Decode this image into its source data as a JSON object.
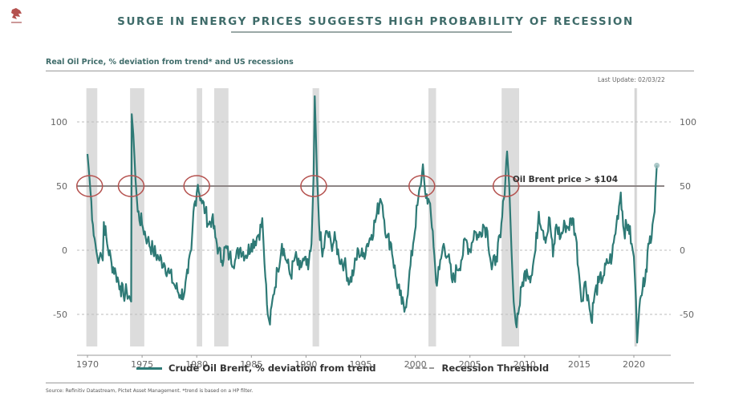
{
  "header": {
    "logo": "lion-crest-logo",
    "title": "SURGE IN ENERGY PRICES SUGGESTS HIGH PROBABILITY OF RECESSION",
    "subtitle": "Real Oil Price, % deviation from trend* and US recessions",
    "last_update": "Last Update: 02/03/22"
  },
  "footer": {
    "source": "Source: Refinitiv Datastream, Pictet Asset Management. *trend is based on a HP filter."
  },
  "colors": {
    "series": "#2e7a76",
    "threshold": "#8d8585",
    "circle": "#b5524f",
    "recession": "#dcdcdc",
    "title": "#3e6b69"
  },
  "chart_data": {
    "type": "line",
    "title": "Real Oil Price, % deviation from trend* and US recessions",
    "xlabel": "",
    "ylabel": "",
    "xlim": [
      1969.3,
      2023.4
    ],
    "ylim": [
      -75,
      125
    ],
    "x_ticks": [
      1970,
      1975,
      1980,
      1985,
      1990,
      1995,
      2000,
      2005,
      2010,
      2015,
      2020
    ],
    "y_ticks": [
      -50,
      0,
      50,
      100
    ],
    "y_tick_labels_right": [
      "-50",
      "0",
      "50",
      "100"
    ],
    "grid": "horizontal dashed",
    "legend": {
      "position": "bottom",
      "entries": [
        {
          "label": "Crude Oil Brent, % deviation from trend",
          "style": "solid"
        },
        {
          "label": "Recession Threshold",
          "style": "dashed"
        }
      ]
    },
    "threshold": {
      "value": 50,
      "label": "Oil Brent price > $104"
    },
    "recessions": [
      [
        1969.9,
        1970.9
      ],
      [
        1973.9,
        1975.2
      ],
      [
        1980.0,
        1980.5
      ],
      [
        1981.6,
        1982.9
      ],
      [
        1990.6,
        1991.2
      ],
      [
        2001.2,
        2001.9
      ],
      [
        2007.9,
        2009.5
      ],
      [
        2020.1,
        2020.3
      ]
    ],
    "circled_crossings": [
      1970.2,
      1974.0,
      1980.0,
      1990.7,
      2000.6,
      2008.3
    ],
    "last_point": {
      "x": 2022.1,
      "y": 66
    },
    "series": [
      {
        "name": "Crude Oil Brent, % deviation from trend",
        "points": [
          [
            1970.0,
            75
          ],
          [
            1970.2,
            55
          ],
          [
            1970.5,
            20
          ],
          [
            1970.8,
            0
          ],
          [
            1971.0,
            -10
          ],
          [
            1971.2,
            -2
          ],
          [
            1971.4,
            -8
          ],
          [
            1971.5,
            22
          ],
          [
            1971.8,
            5
          ],
          [
            1972.2,
            -10
          ],
          [
            1972.6,
            -18
          ],
          [
            1973.0,
            -28
          ],
          [
            1973.3,
            -35
          ],
          [
            1973.6,
            -32
          ],
          [
            1973.9,
            -38
          ],
          [
            1974.0,
            -40
          ],
          [
            1974.05,
            106
          ],
          [
            1974.2,
            90
          ],
          [
            1974.4,
            55
          ],
          [
            1974.6,
            30
          ],
          [
            1975.0,
            20
          ],
          [
            1975.5,
            8
          ],
          [
            1976.0,
            0
          ],
          [
            1976.5,
            -6
          ],
          [
            1977.0,
            -10
          ],
          [
            1977.5,
            -18
          ],
          [
            1978.0,
            -28
          ],
          [
            1978.5,
            -35
          ],
          [
            1978.9,
            -32
          ],
          [
            1979.2,
            -18
          ],
          [
            1979.5,
            0
          ],
          [
            1979.7,
            30
          ],
          [
            1980.0,
            45
          ],
          [
            1980.1,
            51
          ],
          [
            1980.4,
            40
          ],
          [
            1980.8,
            30
          ],
          [
            1981.1,
            20
          ],
          [
            1981.4,
            25
          ],
          [
            1981.7,
            10
          ],
          [
            1982.0,
            0
          ],
          [
            1982.3,
            -8
          ],
          [
            1982.6,
            2
          ],
          [
            1983.0,
            -5
          ],
          [
            1983.5,
            -8
          ],
          [
            1984.0,
            2
          ],
          [
            1984.5,
            -4
          ],
          [
            1985.0,
            5
          ],
          [
            1985.5,
            10
          ],
          [
            1985.9,
            18
          ],
          [
            1986.0,
            25
          ],
          [
            1986.2,
            -10
          ],
          [
            1986.5,
            -50
          ],
          [
            1986.7,
            -58
          ],
          [
            1987.0,
            -35
          ],
          [
            1987.4,
            -15
          ],
          [
            1987.8,
            5
          ],
          [
            1988.2,
            -8
          ],
          [
            1988.6,
            -20
          ],
          [
            1989.0,
            -5
          ],
          [
            1989.4,
            -15
          ],
          [
            1989.8,
            -8
          ],
          [
            1990.2,
            -15
          ],
          [
            1990.5,
            5
          ],
          [
            1990.7,
            60
          ],
          [
            1990.8,
            120
          ],
          [
            1991.0,
            60
          ],
          [
            1991.2,
            20
          ],
          [
            1991.5,
            -5
          ],
          [
            1991.9,
            15
          ],
          [
            1992.3,
            5
          ],
          [
            1992.7,
            8
          ],
          [
            1993.0,
            -5
          ],
          [
            1993.5,
            -10
          ],
          [
            1994.0,
            -25
          ],
          [
            1994.4,
            -15
          ],
          [
            1994.8,
            0
          ],
          [
            1995.2,
            -5
          ],
          [
            1995.6,
            5
          ],
          [
            1996.0,
            12
          ],
          [
            1996.4,
            25
          ],
          [
            1996.8,
            40
          ],
          [
            1997.0,
            35
          ],
          [
            1997.4,
            10
          ],
          [
            1997.8,
            5
          ],
          [
            1998.2,
            -20
          ],
          [
            1998.6,
            -35
          ],
          [
            1999.0,
            -48
          ],
          [
            1999.4,
            -25
          ],
          [
            1999.8,
            5
          ],
          [
            2000.2,
            35
          ],
          [
            2000.5,
            50
          ],
          [
            2000.7,
            67
          ],
          [
            2000.9,
            45
          ],
          [
            2001.2,
            40
          ],
          [
            2001.6,
            15
          ],
          [
            2001.9,
            -25
          ],
          [
            2002.2,
            -15
          ],
          [
            2002.6,
            5
          ],
          [
            2003.0,
            -5
          ],
          [
            2003.4,
            -25
          ],
          [
            2003.8,
            -15
          ],
          [
            2004.2,
            -8
          ],
          [
            2004.6,
            8
          ],
          [
            2005.0,
            0
          ],
          [
            2005.4,
            15
          ],
          [
            2005.8,
            10
          ],
          [
            2006.2,
            20
          ],
          [
            2006.6,
            15
          ],
          [
            2007.0,
            -15
          ],
          [
            2007.4,
            -5
          ],
          [
            2007.8,
            10
          ],
          [
            2008.1,
            40
          ],
          [
            2008.4,
            77
          ],
          [
            2008.6,
            50
          ],
          [
            2008.8,
            0
          ],
          [
            2009.0,
            -40
          ],
          [
            2009.2,
            -57
          ],
          [
            2009.5,
            -45
          ],
          [
            2009.8,
            -25
          ],
          [
            2010.2,
            -15
          ],
          [
            2010.6,
            -20
          ],
          [
            2011.0,
            0
          ],
          [
            2011.3,
            30
          ],
          [
            2011.7,
            15
          ],
          [
            2012.0,
            10
          ],
          [
            2012.3,
            25
          ],
          [
            2012.6,
            -5
          ],
          [
            2012.9,
            20
          ],
          [
            2013.3,
            10
          ],
          [
            2013.7,
            20
          ],
          [
            2014.0,
            18
          ],
          [
            2014.4,
            25
          ],
          [
            2014.7,
            10
          ],
          [
            2015.0,
            -20
          ],
          [
            2015.2,
            -40
          ],
          [
            2015.5,
            -25
          ],
          [
            2015.8,
            -35
          ],
          [
            2016.1,
            -55
          ],
          [
            2016.4,
            -35
          ],
          [
            2016.8,
            -25
          ],
          [
            2017.2,
            -20
          ],
          [
            2017.6,
            -10
          ],
          [
            2018.0,
            -5
          ],
          [
            2018.4,
            20
          ],
          [
            2018.8,
            45
          ],
          [
            2019.1,
            15
          ],
          [
            2019.5,
            20
          ],
          [
            2019.8,
            5
          ],
          [
            2020.0,
            -5
          ],
          [
            2020.2,
            -40
          ],
          [
            2020.3,
            -72
          ],
          [
            2020.5,
            -45
          ],
          [
            2020.8,
            -30
          ],
          [
            2021.1,
            -15
          ],
          [
            2021.4,
            5
          ],
          [
            2021.7,
            20
          ],
          [
            2021.9,
            30
          ],
          [
            2022.0,
            50
          ],
          [
            2022.1,
            66
          ]
        ]
      }
    ]
  }
}
